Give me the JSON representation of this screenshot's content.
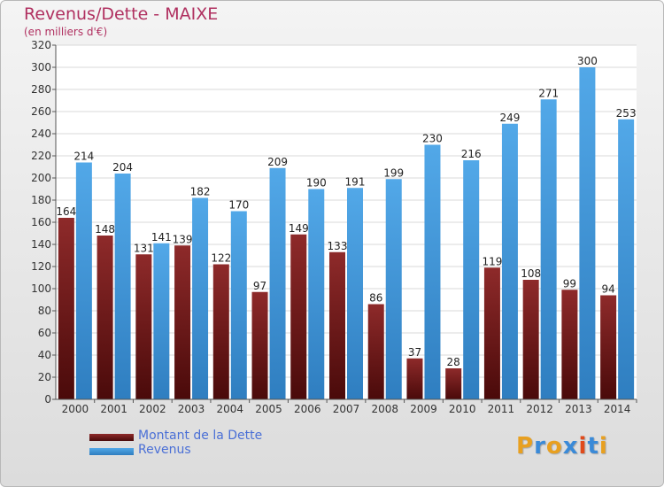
{
  "header": {
    "title": "Revenus/Dette - MAIXE",
    "subtitle": "(en milliers d'€)"
  },
  "colors": {
    "dette": "#7a1a1a",
    "revenus": "#4499dd",
    "title": "#b03060",
    "legend_text": "#4a6fd6"
  },
  "legend": {
    "dette": "Montant de la Dette",
    "revenus": "Revenus"
  },
  "logo": {
    "text": "Proxiti",
    "letters": [
      "P",
      "r",
      "o",
      "x",
      "i",
      "t",
      "i"
    ],
    "colors": [
      "#e8a020",
      "#3a8ad8",
      "#e8a020",
      "#3a8ad8",
      "#e04a1a",
      "#3a8ad8",
      "#e8a020"
    ]
  },
  "chart_data": {
    "type": "bar",
    "title": "Revenus/Dette - MAIXE",
    "subtitle": "(en milliers d'€)",
    "categories": [
      "2000",
      "2001",
      "2002",
      "2003",
      "2004",
      "2005",
      "2006",
      "2007",
      "2008",
      "2009",
      "2010",
      "2011",
      "2012",
      "2013",
      "2014"
    ],
    "series": [
      {
        "name": "Montant de la Dette",
        "values": [
          164,
          148,
          131,
          139,
          122,
          97,
          149,
          133,
          86,
          37,
          28,
          119,
          108,
          99,
          94
        ]
      },
      {
        "name": "Revenus",
        "values": [
          214,
          204,
          141,
          182,
          170,
          209,
          190,
          191,
          199,
          230,
          216,
          249,
          271,
          300,
          253
        ]
      }
    ],
    "ylim": [
      0,
      320
    ],
    "yticks": [
      0,
      20,
      40,
      60,
      80,
      100,
      120,
      140,
      160,
      180,
      200,
      220,
      240,
      260,
      280,
      300,
      320
    ],
    "grid": true,
    "legend_position": "bottom-left"
  }
}
